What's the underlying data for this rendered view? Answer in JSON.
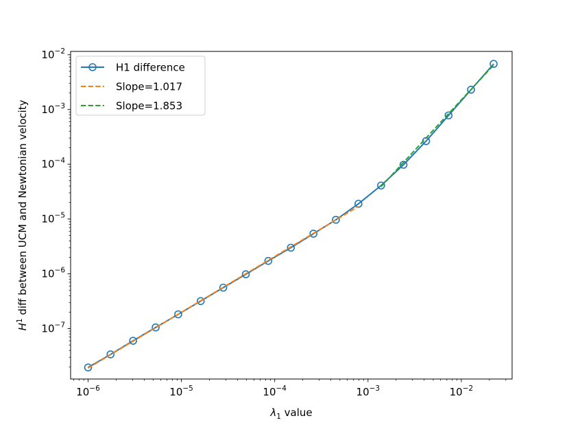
{
  "chart_data": {
    "type": "line",
    "xscale": "log",
    "yscale": "log",
    "xlim": [
      6.5e-07,
      0.035
    ],
    "ylim": [
      1.2e-08,
      0.0115
    ],
    "xlabel": {
      "symbol": "λ",
      "subscript": "1",
      "suffix": " value"
    },
    "ylabel": {
      "symbol": "H",
      "superscript": "1",
      "suffix": " diff between UCM and Newtonian velocity"
    },
    "x_ticks": [
      {
        "base": "10",
        "exp": "−6",
        "value": 1e-06
      },
      {
        "base": "10",
        "exp": "−5",
        "value": 1e-05
      },
      {
        "base": "10",
        "exp": "−4",
        "value": 0.0001
      },
      {
        "base": "10",
        "exp": "−3",
        "value": 0.001
      },
      {
        "base": "10",
        "exp": "−2",
        "value": 0.01
      }
    ],
    "y_ticks": [
      {
        "base": "10",
        "exp": "−7",
        "value": 1e-07
      },
      {
        "base": "10",
        "exp": "−6",
        "value": 1e-06
      },
      {
        "base": "10",
        "exp": "−5",
        "value": 1e-05
      },
      {
        "base": "10",
        "exp": "−4",
        "value": 0.0001
      },
      {
        "base": "10",
        "exp": "−3",
        "value": 0.001
      },
      {
        "base": "10",
        "exp": "−2",
        "value": 0.01
      }
    ],
    "grid": false,
    "legend_position": "top-left",
    "series": [
      {
        "name": "H1 difference",
        "color": "#1f77b4",
        "style": "solid-circle-markers",
        "x": [
          1e-06,
          1.74e-06,
          3.04e-06,
          5.3e-06,
          9.24e-06,
          1.61e-05,
          2.81e-05,
          4.9e-05,
          8.54e-05,
          0.000149,
          0.00026,
          0.000453,
          0.00079,
          0.00138,
          0.0024,
          0.00419,
          0.0073,
          0.0127,
          0.0222
        ],
        "y": [
          1.95e-08,
          3.38e-08,
          6e-08,
          1.05e-07,
          1.82e-07,
          3.18e-07,
          5.6e-07,
          9.8e-07,
          1.72e-06,
          3e-06,
          5.4e-06,
          9.7e-06,
          1.9e-05,
          4.1e-05,
          9.8e-05,
          0.000265,
          0.00078,
          0.0023,
          0.0068
        ]
      },
      {
        "name": "Slope=1.017",
        "color": "#ff7f0e",
        "style": "dashed",
        "x": [
          1e-06,
          0.00079
        ],
        "y": [
          1.9e-08,
          1.7e-05
        ]
      },
      {
        "name": "Slope=1.853",
        "color": "#2ca02c",
        "style": "dashed",
        "x": [
          0.00138,
          0.0222
        ],
        "y": [
          3.9e-05,
          0.0065
        ]
      }
    ]
  }
}
